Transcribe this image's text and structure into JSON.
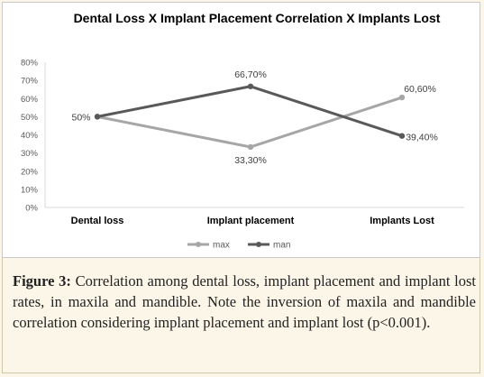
{
  "chart_data": {
    "type": "line",
    "title": "Dental Loss X Implant Placement Correlation X Implants Lost",
    "categories": [
      "Dental loss",
      "Implant placement",
      "Implants Lost"
    ],
    "yticks": [
      "0%",
      "10%",
      "20%",
      "30%",
      "40%",
      "50%",
      "60%",
      "70%",
      "80%"
    ],
    "ylim": [
      0,
      80
    ],
    "grid": false,
    "legend_position": "bottom",
    "series": [
      {
        "name": "max",
        "color": "#a6a6a6",
        "values": [
          50,
          33.3,
          60.6
        ],
        "labels": [
          "",
          "33,30%",
          "60,60%"
        ]
      },
      {
        "name": "man",
        "color": "#595959",
        "values": [
          50,
          66.7,
          39.4
        ],
        "labels": [
          "50%",
          "66,70%",
          "39,40%"
        ]
      }
    ]
  },
  "caption": {
    "label": "Figure 3:",
    "text": "Correlation among dental loss, implant placement and implant lost rates, in maxila and mandible. Note the inversion of maxila and mandible correlation considering implant placement and implant lost (p<0.001)."
  }
}
